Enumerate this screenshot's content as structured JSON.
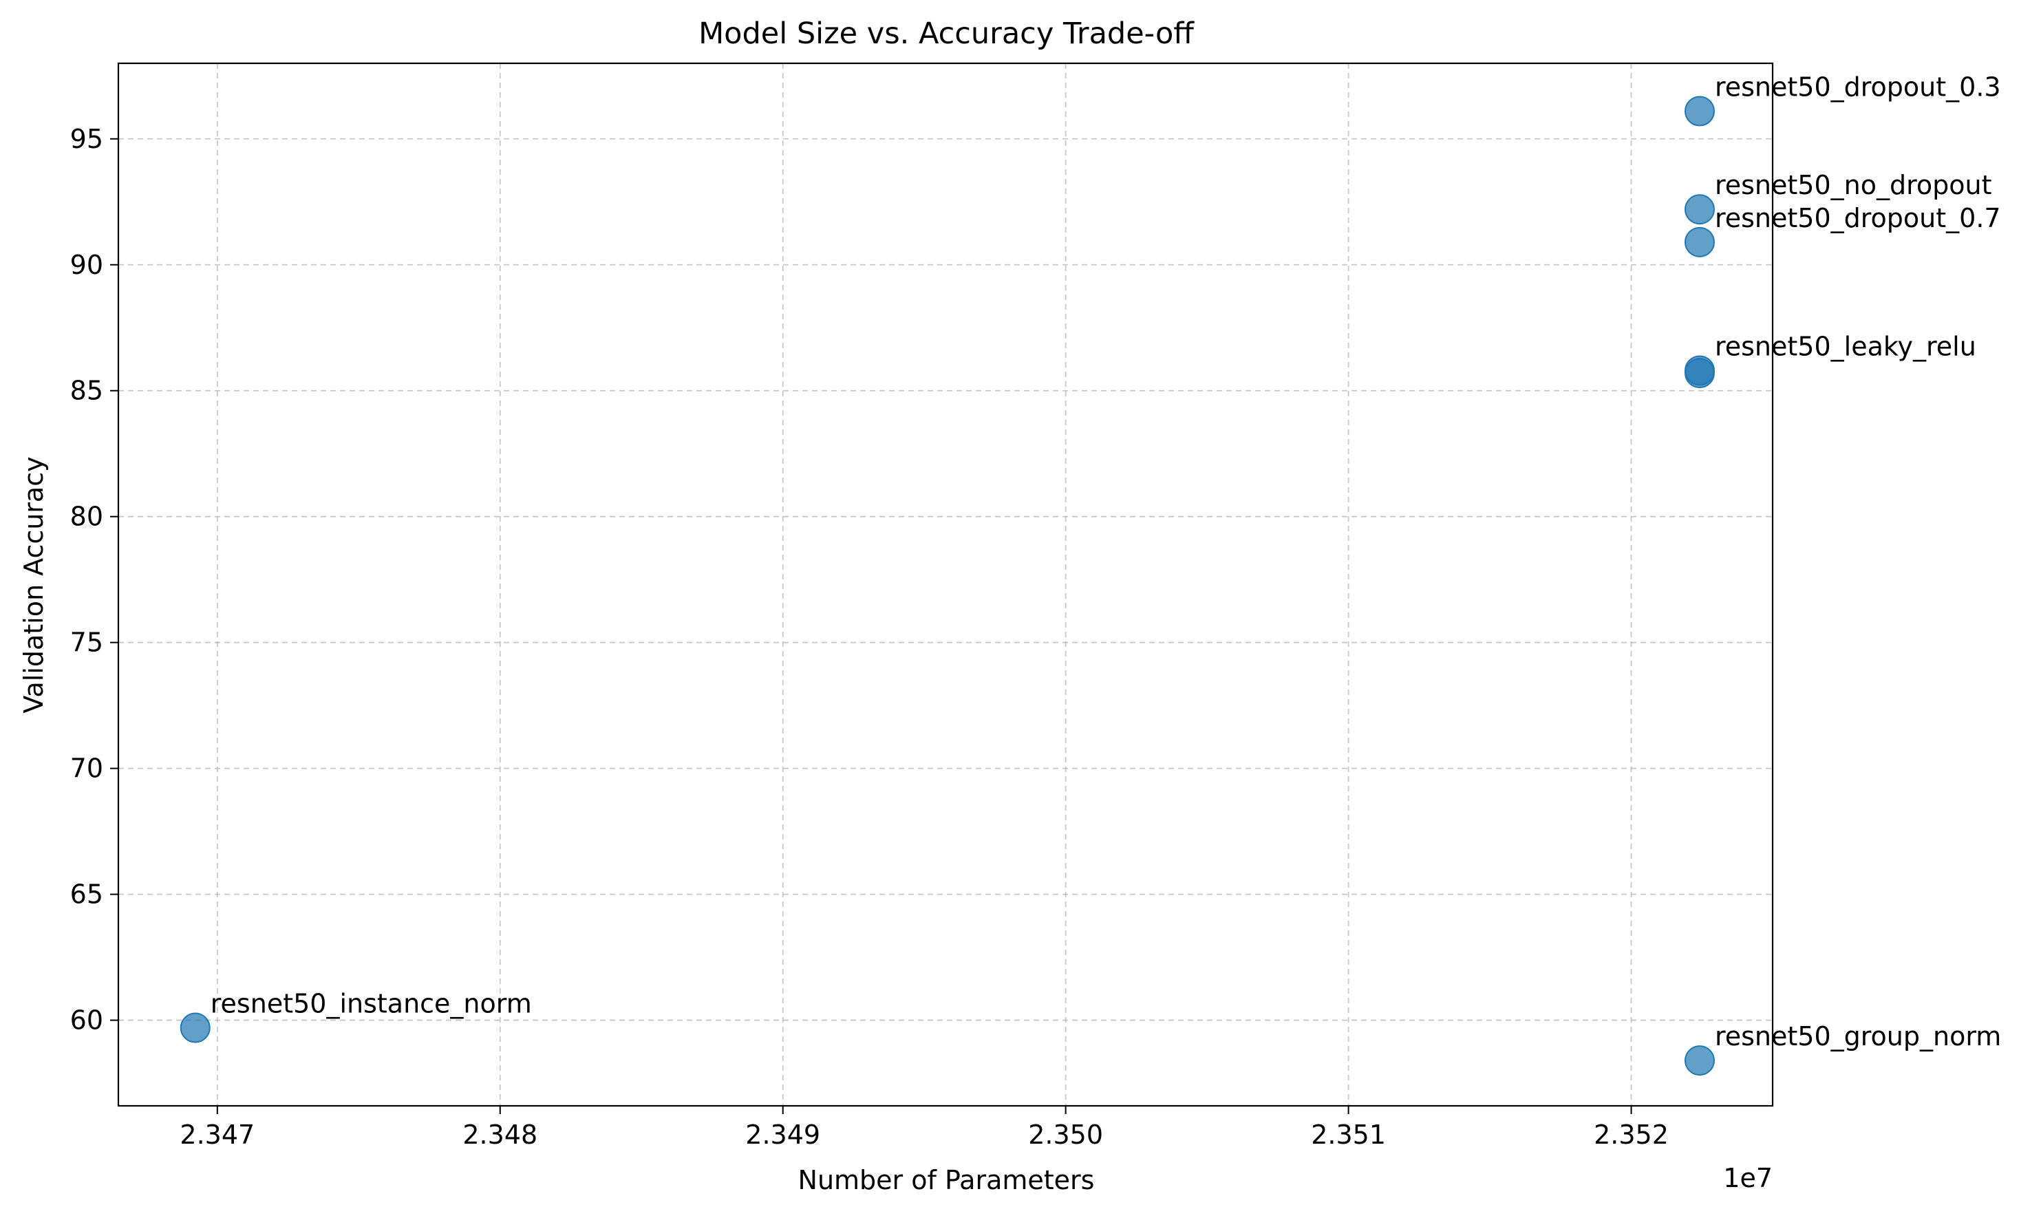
{
  "chart_data": {
    "type": "scatter",
    "title": "Model Size vs. Accuracy Trade-off",
    "xlabel": "Number of Parameters",
    "ylabel": "Validation Accuracy",
    "x_offset_text": "1e7",
    "xlim": [
      2.34665,
      2.3525
    ],
    "ylim": [
      56.6,
      98.0
    ],
    "xticks": [
      2.347,
      2.348,
      2.349,
      2.35,
      2.351,
      2.352
    ],
    "xtick_labels": [
      "2.347",
      "2.348",
      "2.349",
      "2.350",
      "2.351",
      "2.352"
    ],
    "yticks": [
      60,
      65,
      70,
      75,
      80,
      85,
      90,
      95
    ],
    "ytick_labels": [
      "60",
      "65",
      "70",
      "75",
      "80",
      "85",
      "90",
      "95"
    ],
    "grid": true,
    "point_color": "#1f77b4",
    "points": [
      {
        "label": "resnet50_dropout_0.3",
        "x": 2.352242,
        "y": 96.1
      },
      {
        "label": "resnet50_no_dropout",
        "x": 2.352242,
        "y": 92.2
      },
      {
        "label": "resnet50_dropout_0.7",
        "x": 2.352242,
        "y": 90.9
      },
      {
        "label": "resnet50_leaky_relu",
        "x": 2.352242,
        "y": 85.8
      },
      {
        "label": "",
        "x": 2.352242,
        "y": 85.7
      },
      {
        "label": "resnet50_instance_norm",
        "x": 2.346922,
        "y": 59.7
      },
      {
        "label": "resnet50_group_norm",
        "x": 2.352242,
        "y": 58.4
      }
    ]
  }
}
